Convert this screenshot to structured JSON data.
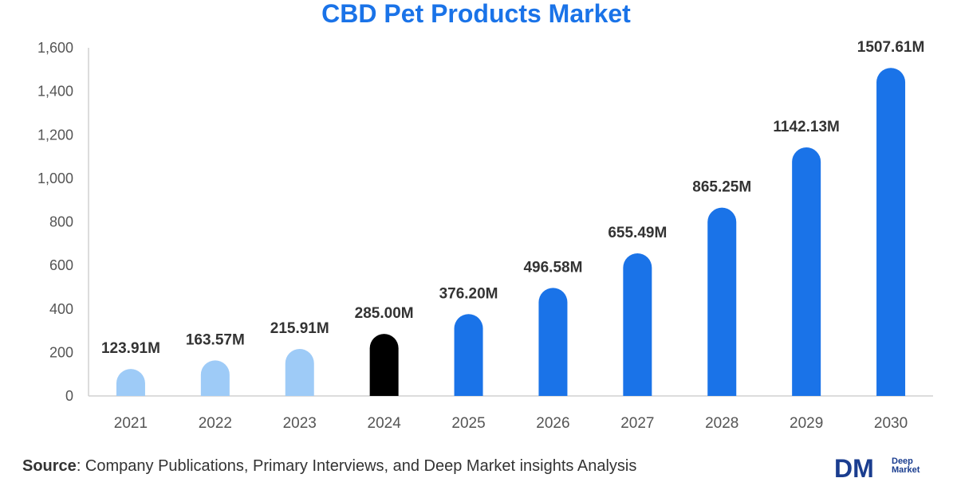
{
  "chart_data": {
    "type": "bar",
    "title": "CBD Pet Products Market",
    "xlabel": "",
    "ylabel": "",
    "ylim": [
      0,
      1600
    ],
    "yticks": [
      0,
      200,
      400,
      600,
      800,
      1000,
      1200,
      1400,
      1600
    ],
    "ytick_labels": [
      "0",
      "200",
      "400",
      "600",
      "800",
      "1,000",
      "1,200",
      "1,400",
      "1,600"
    ],
    "categories": [
      "2021",
      "2022",
      "2023",
      "2024",
      "2025",
      "2026",
      "2027",
      "2028",
      "2029",
      "2030"
    ],
    "values": [
      123.91,
      163.57,
      215.91,
      285.0,
      376.2,
      496.58,
      655.49,
      865.25,
      1142.13,
      1507.61
    ],
    "data_labels": [
      "123.91M",
      "163.57M",
      "215.91M",
      "285.00M",
      "376.20M",
      "496.58M",
      "655.49M",
      "865.25M",
      "1142.13M",
      "1507.61M"
    ],
    "bar_colors": [
      "#9ecbf7",
      "#9ecbf7",
      "#9ecbf7",
      "#000000",
      "#1a73e8",
      "#1a73e8",
      "#1a73e8",
      "#1a73e8",
      "#1a73e8",
      "#1a73e8"
    ],
    "grid": false
  },
  "footer": {
    "source_prefix": "Source",
    "source_text": ": Company Publications, Primary Interviews, and Deep Market insights Analysis"
  },
  "logo": {
    "mark": "DM",
    "line1": "Deep",
    "line2": "Market"
  },
  "colors": {
    "title": "#1a73e8",
    "axis": "#d0d0d0",
    "historical": "#9ecbf7",
    "base_year": "#000000",
    "forecast": "#1a73e8",
    "logo": "#1a3d8f"
  }
}
